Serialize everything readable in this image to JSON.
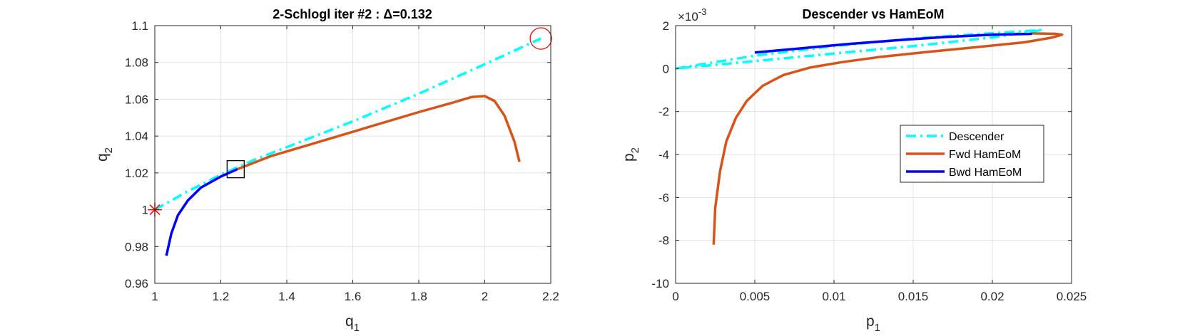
{
  "chart_data": [
    {
      "type": "line",
      "title": "2-Schlogl iter #2 : Δ=0.132",
      "xlabel": "q",
      "xlabel_sub": "1",
      "ylabel": "q",
      "ylabel_sub": "2",
      "xlim": [
        1,
        2.2
      ],
      "ylim": [
        0.96,
        1.1
      ],
      "xticks": [
        "1",
        "1.2",
        "1.4",
        "1.6",
        "1.8",
        "2",
        "2.2"
      ],
      "yticks": [
        "0.96",
        "0.98",
        "1",
        "1.02",
        "1.04",
        "1.06",
        "1.08",
        "1.1"
      ],
      "grid": true,
      "series": [
        {
          "color": "#00ffff",
          "style": "dashdot",
          "x": [
            1.0,
            1.1,
            1.2,
            1.3,
            1.4,
            1.6,
            1.8,
            2.0,
            2.17
          ],
          "y": [
            1.0,
            1.01,
            1.019,
            1.027,
            1.034,
            1.048,
            1.063,
            1.079,
            1.093
          ]
        },
        {
          "color": "#d95319",
          "style": "solid",
          "x": [
            1.25,
            1.35,
            1.5,
            1.65,
            1.8,
            1.9,
            1.96,
            2.0,
            2.03,
            2.06,
            2.09,
            2.105
          ],
          "y": [
            1.022,
            1.029,
            1.037,
            1.045,
            1.053,
            1.058,
            1.0612,
            1.0617,
            1.059,
            1.051,
            1.037,
            1.026
          ]
        },
        {
          "color": "#0000ff",
          "style": "solid",
          "x": [
            1.035,
            1.05,
            1.07,
            1.1,
            1.14,
            1.2,
            1.25
          ],
          "y": [
            0.975,
            0.987,
            0.997,
            1.005,
            1.012,
            1.018,
            1.022
          ]
        }
      ],
      "markers": [
        {
          "shape": "asterisk",
          "color": "#ff0000",
          "x": 1.0,
          "y": 1.0
        },
        {
          "shape": "square",
          "color": "#000000",
          "x": 1.245,
          "y": 1.022
        },
        {
          "shape": "circle",
          "color": "#ff0000",
          "x": 2.17,
          "y": 1.093
        }
      ]
    },
    {
      "type": "line",
      "title": "Descender vs HamEoM",
      "xlabel": "p",
      "xlabel_sub": "1",
      "ylabel": "p",
      "ylabel_sub": "2",
      "exponent_base": "×10",
      "exponent": "-3",
      "xlim": [
        0,
        0.025
      ],
      "ylim": [
        -10,
        2
      ],
      "xticks": [
        "0",
        "0.005",
        "0.01",
        "0.015",
        "0.02",
        "0.025"
      ],
      "yticks": [
        "-10",
        "-8",
        "-6",
        "-4",
        "-2",
        "0",
        "2"
      ],
      "grid": true,
      "legend_position": "right-center",
      "series": [
        {
          "name": "Descender",
          "color": "#00ffff",
          "style": "dashdot",
          "x": [
            0,
            0.005,
            0.01,
            0.015,
            0.02,
            0.0232,
            0.02,
            0.015,
            0.01,
            0.005,
            0
          ],
          "y": [
            0,
            0.6,
            1.05,
            1.4,
            1.65,
            1.8,
            1.45,
            1.05,
            0.7,
            0.35,
            0
          ]
        },
        {
          "name": "Fwd HamEoM",
          "color": "#d95319",
          "style": "solid",
          "x": [
            0.0024,
            0.0025,
            0.0028,
            0.0032,
            0.0038,
            0.0045,
            0.0055,
            0.0068,
            0.0085,
            0.0105,
            0.013,
            0.016,
            0.019,
            0.022,
            0.0238,
            0.0244,
            0.024,
            0.0225
          ],
          "y": [
            -8.2,
            -6.5,
            -4.8,
            -3.4,
            -2.3,
            -1.5,
            -0.8,
            -0.3,
            0.05,
            0.3,
            0.55,
            0.78,
            1.0,
            1.22,
            1.45,
            1.58,
            1.62,
            1.64
          ]
        },
        {
          "name": "Bwd HamEoM",
          "color": "#0000ff",
          "style": "solid",
          "x": [
            0.005,
            0.008,
            0.011,
            0.014,
            0.017,
            0.02,
            0.0225
          ],
          "y": [
            0.75,
            0.95,
            1.15,
            1.32,
            1.47,
            1.58,
            1.62
          ]
        }
      ]
    }
  ]
}
